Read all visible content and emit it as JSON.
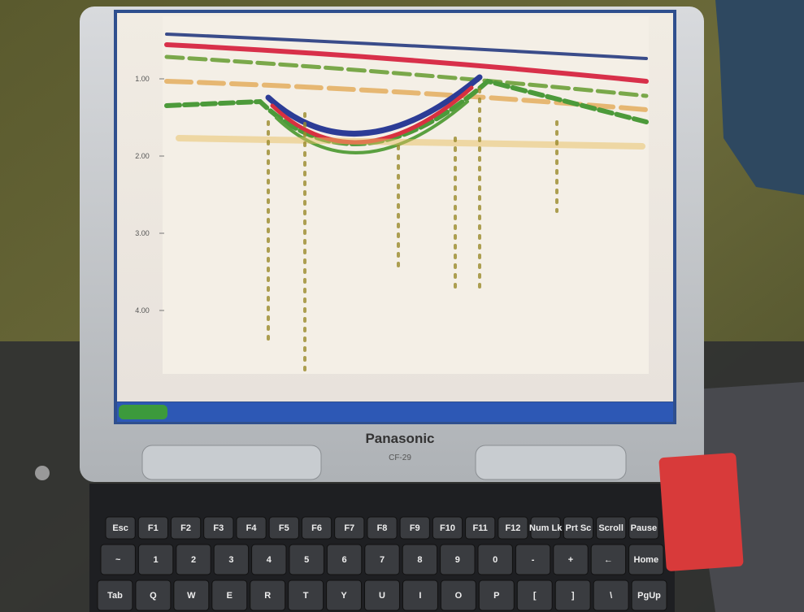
{
  "screen": {
    "depth_labels": [
      "1.00",
      "2.00",
      "3.00",
      "4.00"
    ]
  },
  "laptop": {
    "brand": "Panasonic",
    "model": "CF-29"
  },
  "keyboard": {
    "rows": [
      [
        "Esc",
        "F1",
        "F2",
        "F3",
        "F4",
        "F5",
        "F6",
        "F7",
        "F8",
        "F9",
        "F10",
        "F11",
        "F12",
        "Num Lk",
        "Prt Sc",
        "Scroll",
        "Pause"
      ],
      [
        "~",
        "1",
        "2",
        "3",
        "4",
        "5",
        "6",
        "7",
        "8",
        "9",
        "0",
        "-",
        "+",
        "←",
        "Home"
      ],
      [
        "Tab",
        "Q",
        "W",
        "E",
        "R",
        "T",
        "Y",
        "U",
        "I",
        "O",
        "P",
        "[",
        "]",
        "\\",
        "PgUp"
      ]
    ]
  }
}
